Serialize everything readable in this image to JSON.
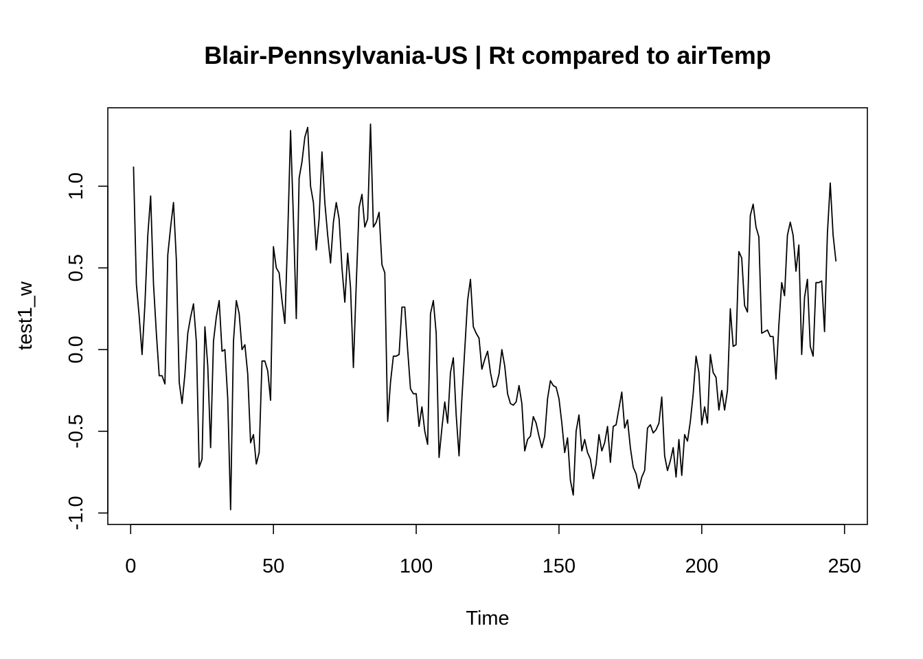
{
  "chart_data": {
    "type": "line",
    "title": "Blair-Pennsylvania-US | Rt compared to airTemp",
    "xlabel": "Time",
    "ylabel": "test1_w",
    "xlim": [
      -8,
      258
    ],
    "ylim": [
      -1.07,
      1.48
    ],
    "x_ticks": [
      0,
      50,
      100,
      150,
      200,
      250
    ],
    "x_tick_labels": [
      "0",
      "50",
      "100",
      "150",
      "200",
      "250"
    ],
    "y_ticks": [
      -1.0,
      -0.5,
      0.0,
      0.5,
      1.0
    ],
    "y_tick_labels": [
      "-1.0",
      "-0.5",
      "0.0",
      "0.5",
      "1.0"
    ],
    "grid": false,
    "series": [
      {
        "x_start": 1,
        "values": [
          1.12,
          0.4,
          0.2,
          -0.03,
          0.28,
          0.7,
          0.94,
          0.4,
          0.1,
          -0.16,
          -0.16,
          -0.21,
          0.58,
          0.75,
          0.9,
          0.55,
          -0.2,
          -0.33,
          -0.15,
          0.1,
          0.2,
          0.28,
          0.05,
          -0.72,
          -0.67,
          0.14,
          -0.1,
          -0.6,
          0.05,
          0.2,
          0.3,
          -0.01,
          0.0,
          -0.3,
          -0.98,
          0.05,
          0.3,
          0.22,
          0.0,
          0.03,
          -0.15,
          -0.57,
          -0.52,
          -0.7,
          -0.63,
          -0.07,
          -0.07,
          -0.13,
          -0.31,
          0.63,
          0.5,
          0.47,
          0.3,
          0.16,
          0.7,
          1.34,
          0.8,
          0.19,
          1.05,
          1.15,
          1.3,
          1.36,
          1.0,
          0.9,
          0.61,
          0.8,
          1.21,
          0.9,
          0.7,
          0.53,
          0.78,
          0.9,
          0.8,
          0.5,
          0.29,
          0.59,
          0.38,
          -0.11,
          0.4,
          0.87,
          0.95,
          0.75,
          0.8,
          1.38,
          0.75,
          0.78,
          0.84,
          0.52,
          0.47,
          -0.44,
          -0.2,
          -0.04,
          -0.04,
          -0.03,
          0.26,
          0.26,
          0.0,
          -0.24,
          -0.27,
          -0.27,
          -0.47,
          -0.35,
          -0.5,
          -0.58,
          0.22,
          0.3,
          0.1,
          -0.66,
          -0.48,
          -0.32,
          -0.45,
          -0.14,
          -0.05,
          -0.4,
          -0.65,
          -0.3,
          0.0,
          0.3,
          0.43,
          0.14,
          0.1,
          0.07,
          -0.12,
          -0.06,
          -0.01,
          -0.14,
          -0.23,
          -0.22,
          -0.15,
          0.0,
          -0.1,
          -0.27,
          -0.33,
          -0.34,
          -0.32,
          -0.22,
          -0.33,
          -0.62,
          -0.55,
          -0.53,
          -0.41,
          -0.45,
          -0.53,
          -0.6,
          -0.53,
          -0.3,
          -0.19,
          -0.22,
          -0.23,
          -0.3,
          -0.45,
          -0.63,
          -0.54,
          -0.8,
          -0.89,
          -0.5,
          -0.4,
          -0.62,
          -0.55,
          -0.63,
          -0.67,
          -0.79,
          -0.7,
          -0.52,
          -0.62,
          -0.57,
          -0.47,
          -0.69,
          -0.47,
          -0.46,
          -0.36,
          -0.26,
          -0.48,
          -0.43,
          -0.6,
          -0.72,
          -0.76,
          -0.85,
          -0.78,
          -0.74,
          -0.48,
          -0.46,
          -0.51,
          -0.49,
          -0.45,
          -0.29,
          -0.65,
          -0.74,
          -0.68,
          -0.6,
          -0.78,
          -0.55,
          -0.77,
          -0.52,
          -0.56,
          -0.44,
          -0.27,
          -0.04,
          -0.14,
          -0.46,
          -0.35,
          -0.45,
          -0.03,
          -0.14,
          -0.17,
          -0.37,
          -0.25,
          -0.37,
          -0.25,
          0.25,
          0.02,
          0.03,
          0.6,
          0.56,
          0.27,
          0.23,
          0.82,
          0.89,
          0.75,
          0.69,
          0.1,
          0.11,
          0.12,
          0.08,
          0.08,
          -0.18,
          0.15,
          0.41,
          0.33,
          0.7,
          0.78,
          0.7,
          0.48,
          0.64,
          -0.03,
          0.32,
          0.43,
          0.02,
          -0.04,
          0.41,
          0.41,
          0.42,
          0.11,
          0.71,
          1.02,
          0.7,
          0.54
        ]
      }
    ]
  }
}
